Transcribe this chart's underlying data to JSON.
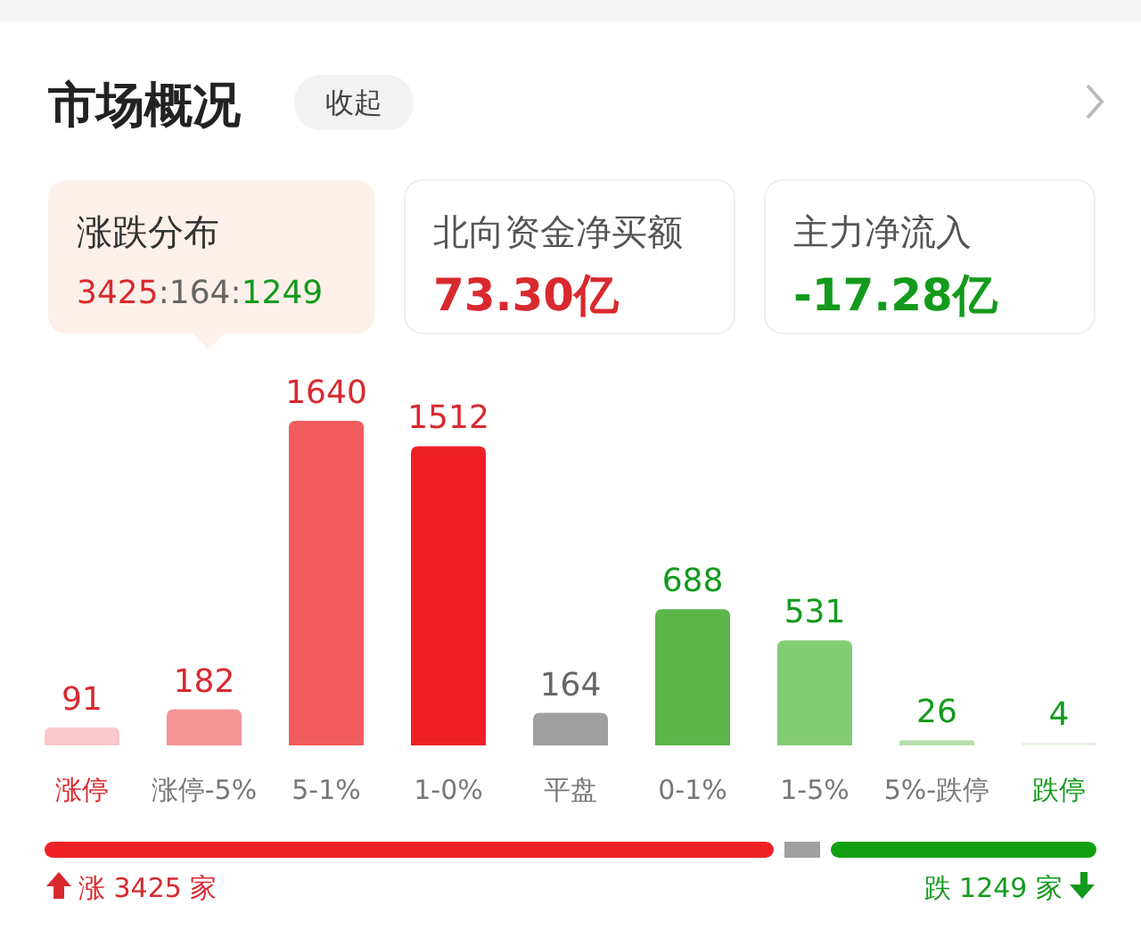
{
  "chart_data": [
    {
      "type": "bar",
      "title": "市场概况",
      "annotations": [
        "收起",
        "涨跌分布",
        "3425:164:1249",
        "北向资金净买额",
        "73.30亿",
        "主力净流入",
        "-17.28亿",
        "涨 3425 家",
        "跌 1249 家"
      ],
      "categories": [
        "涨停",
        "涨停-5%",
        "5-1%",
        "1-0%",
        "平盘",
        "0-1%",
        "1-5%",
        "5%-跌停",
        "跌停"
      ],
      "values": [
        91,
        182,
        1640,
        1512,
        164,
        688,
        531,
        26,
        4
      ],
      "colors": [
        "#f9c9cb",
        "#f59496",
        "#f25b5e",
        "#ef2025",
        "#a0a0a0",
        "#5bb548",
        "#84cc74",
        "#b5dea9",
        "#e8f4e4"
      ],
      "data_labels": true
    }
  ]
}
